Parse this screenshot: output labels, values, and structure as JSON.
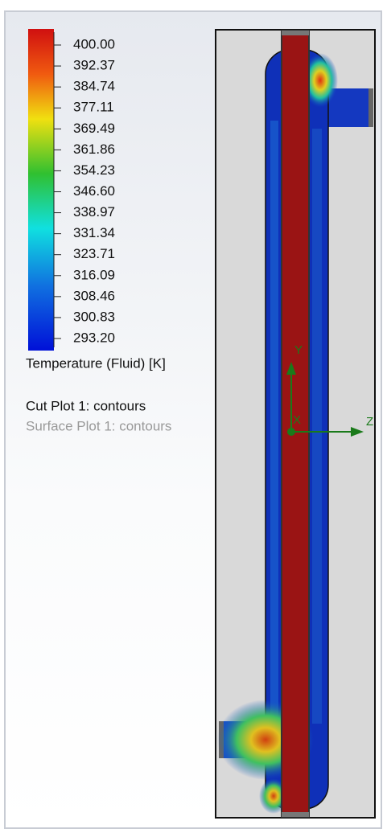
{
  "legend": {
    "labels": [
      "400.00",
      "392.37",
      "384.74",
      "377.11",
      "369.49",
      "361.86",
      "354.23",
      "346.60",
      "338.97",
      "331.34",
      "323.71",
      "316.09",
      "308.46",
      "300.83",
      "293.20"
    ],
    "title": "Temperature (Fluid) [K]"
  },
  "plots": [
    "Cut Plot 1: contours",
    "Surface Plot 1: contours"
  ],
  "triad": {
    "y": "Y",
    "z": "Z",
    "x": "X"
  }
}
